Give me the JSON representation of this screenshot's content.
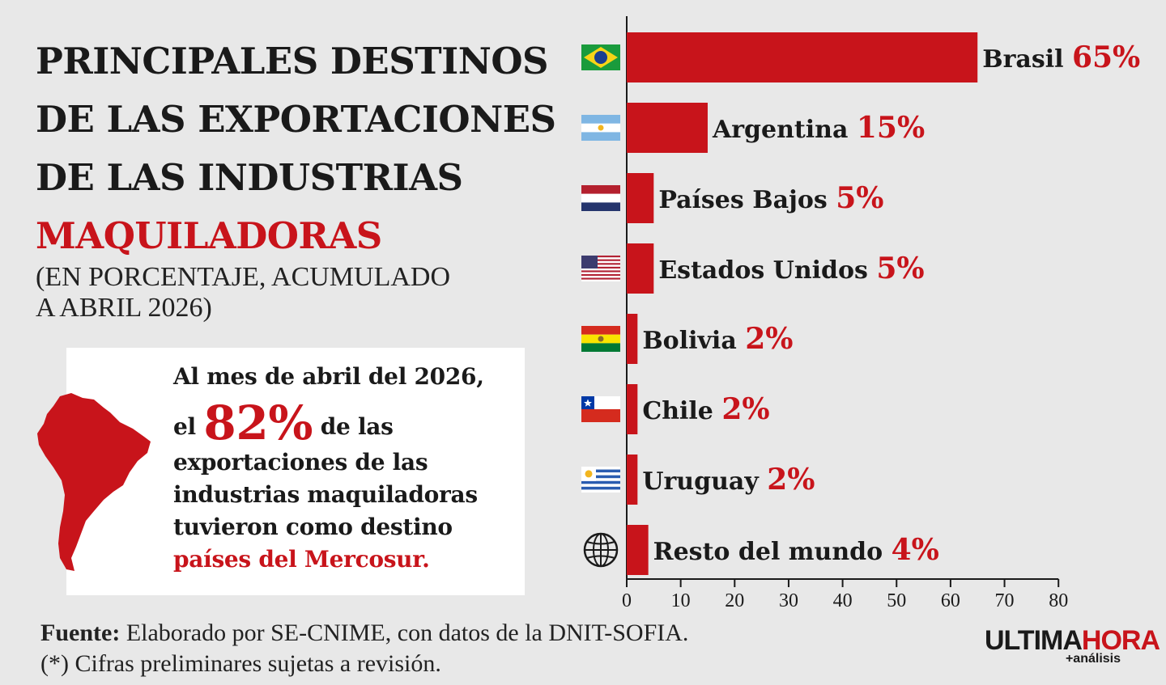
{
  "title": {
    "line1": "PRINCIPALES DESTINOS",
    "line2": "DE LAS EXPORTACIONES",
    "line3": "DE LAS INDUSTRIAS",
    "highlight": "MAQUILADORAS"
  },
  "subtitle": {
    "line1": "(EN PORCENTAJE, ACUMULADO",
    "line2": "A ABRIL 2026)"
  },
  "callout": {
    "line1": "Al mes de abril del 2026,",
    "pre_big": "el ",
    "big": "82%",
    "post_big": " de las",
    "line3": "exportaciones de las",
    "line4": "industrias maquiladoras",
    "line5": "tuvieron como destino",
    "highlight": "países del Mercosur."
  },
  "footer": {
    "source_label": "Fuente:",
    "source_text": " Elaborado por SE-CNIME, con datos de la DNIT-SOFIA.",
    "note": "(*) Cifras preliminares sujetas a revisión."
  },
  "logo": {
    "part1": "ULTIMA",
    "part2": "HORA",
    "tag": "+análisis"
  },
  "colors": {
    "accent": "#c8141b",
    "background": "#e8e8e8",
    "text": "#1a1a1a"
  },
  "chart_data": {
    "type": "bar",
    "orientation": "horizontal",
    "categories": [
      "Brasil",
      "Argentina",
      "Países Bajos",
      "Estados Unidos",
      "Bolivia",
      "Chile",
      "Uruguay",
      "Resto del mundo"
    ],
    "values": [
      65,
      15,
      5,
      5,
      2,
      2,
      2,
      4
    ],
    "value_labels": [
      "65%",
      "15%",
      "5%",
      "5%",
      "2%",
      "2%",
      "2%",
      "4%"
    ],
    "icons": [
      "flag-brazil-icon",
      "flag-argentina-icon",
      "flag-netherlands-icon",
      "flag-usa-icon",
      "flag-bolivia-icon",
      "flag-chile-icon",
      "flag-uruguay-icon",
      "globe-icon"
    ],
    "xlim": [
      0,
      80
    ],
    "xticks": [
      0,
      10,
      20,
      30,
      40,
      50,
      60,
      70,
      80
    ],
    "grid": false,
    "bar_color": "#c8141b"
  }
}
